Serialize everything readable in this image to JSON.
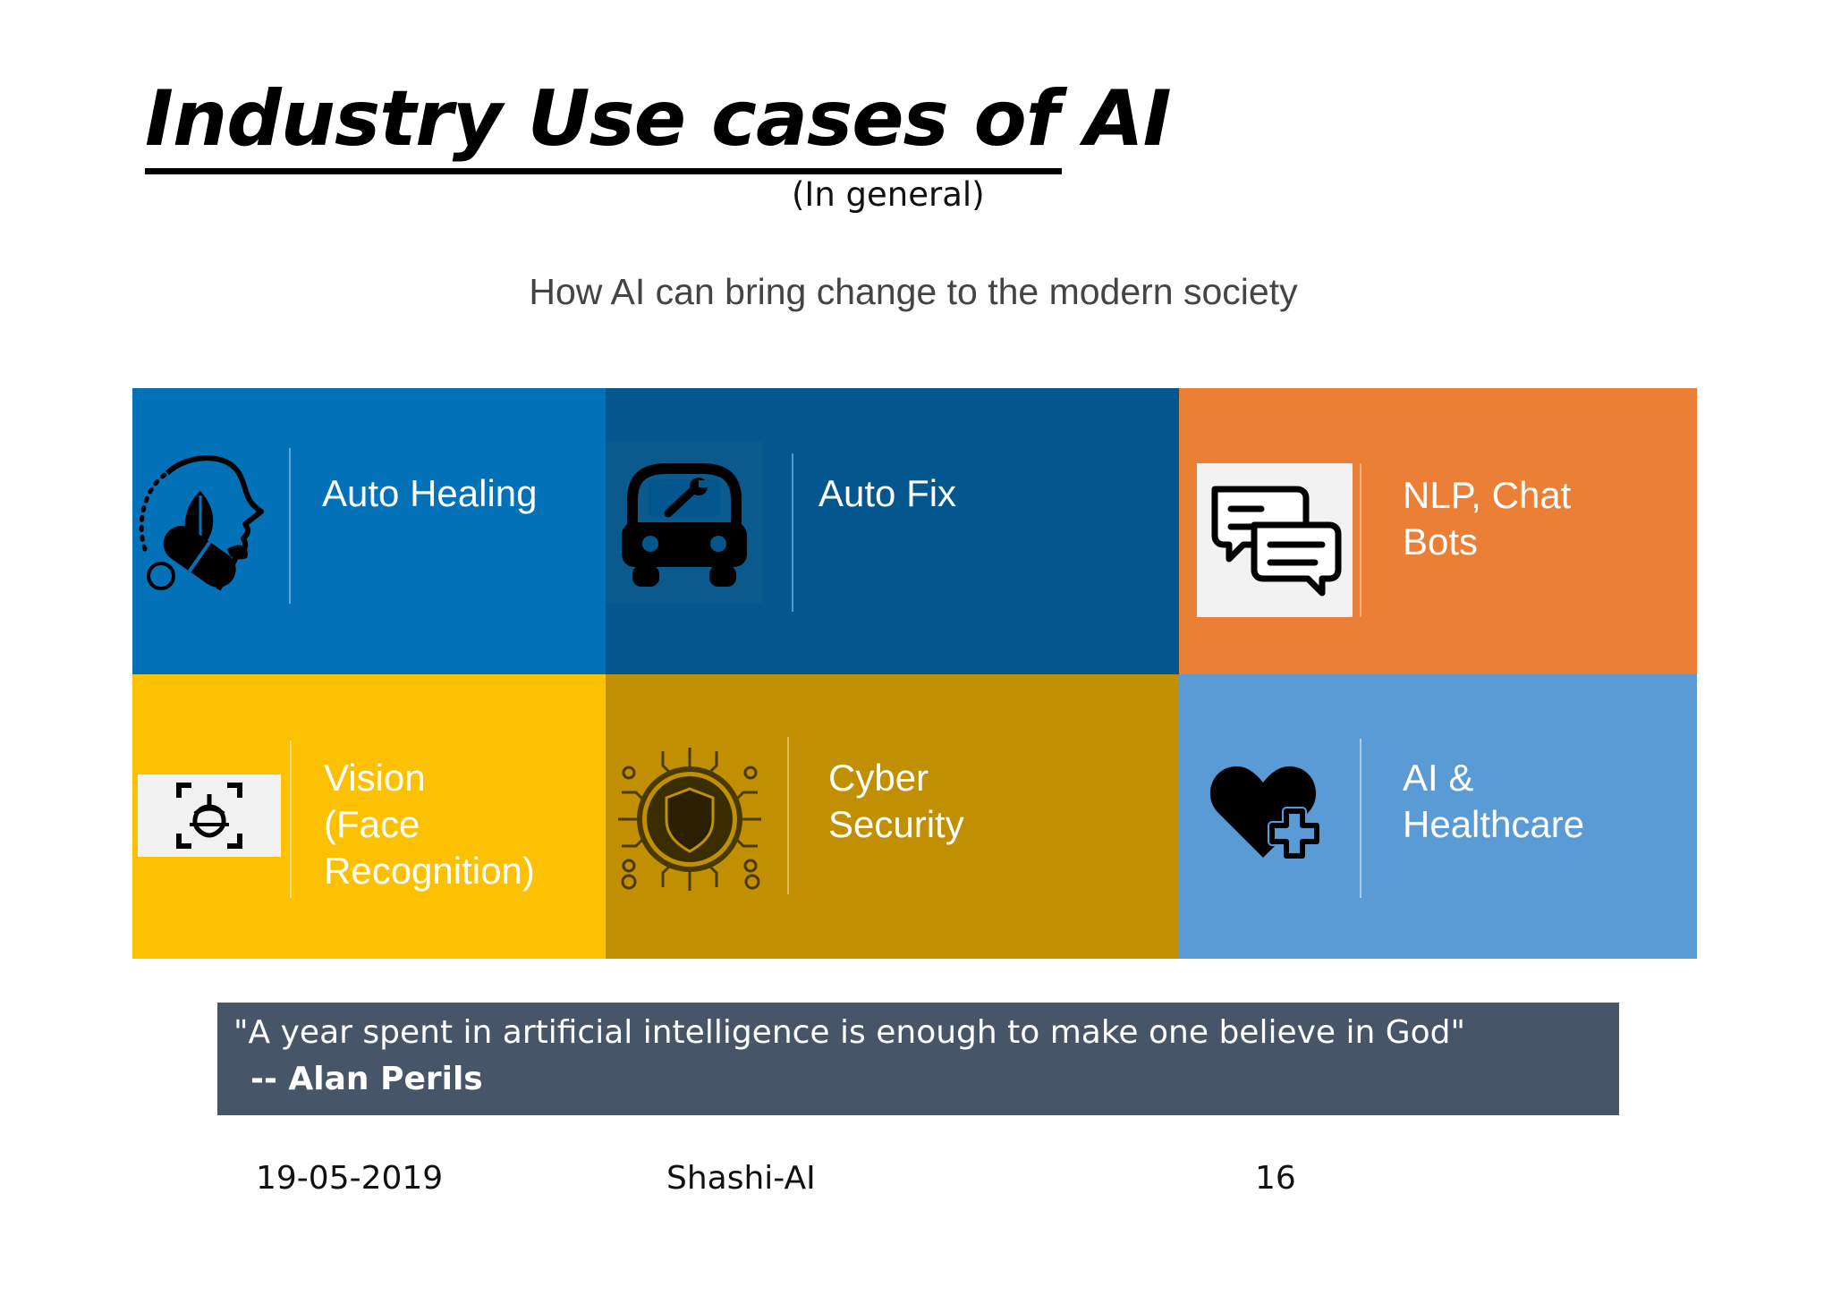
{
  "slide": {
    "title": "Industry Use cases of AI",
    "subtitle": "(In general)",
    "tagline": "How AI can bring change to the modern society"
  },
  "tiles": [
    {
      "label": "Auto Healing",
      "icon": "healing-head-pill-icon",
      "color": "#0271B8"
    },
    {
      "label": "Auto Fix",
      "icon": "car-wrench-icon",
      "color": "#03578E"
    },
    {
      "label": "NLP, Chat\nBots",
      "icon": "chat-bubbles-icon",
      "color": "#EB7F36"
    },
    {
      "label": "Vision\n(Face\nRecognition)",
      "icon": "face-recognition-icon",
      "color": "#FBC102"
    },
    {
      "label": "Cyber\nSecurity",
      "icon": "circuit-shield-icon",
      "color": "#C09002"
    },
    {
      "label": "AI &\nHealthcare",
      "icon": "heart-plus-icon",
      "color": "#5B9BD5"
    }
  ],
  "quote": {
    "text": "\"A year spent in artificial intelligence is enough to make one believe in God\"",
    "author": "-- Alan Perils",
    "color": "#475569"
  },
  "footer": {
    "date": "19-05-2019",
    "author": "Shashi-AI",
    "page": "16"
  }
}
